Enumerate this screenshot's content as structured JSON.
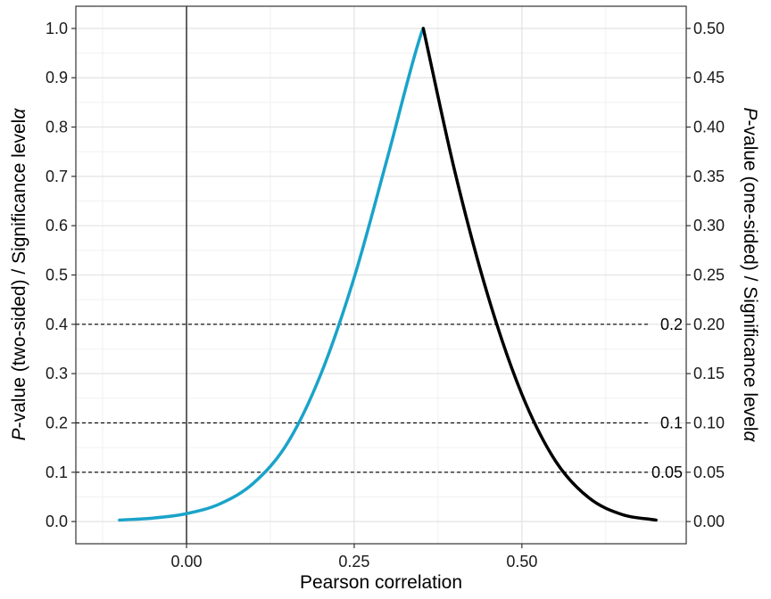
{
  "chart_data": {
    "type": "line",
    "xlabel": "Pearson correlation",
    "ylabel_left_italic": "P",
    "ylabel_left_rest": "-value (two-sided) / Significance level",
    "ylabel_left_symbol": "α",
    "ylabel_right_italic": "P",
    "ylabel_right_rest": "-value (one-sided) / Significance level",
    "ylabel_right_symbol": "α",
    "xlim": [
      -0.165,
      0.745
    ],
    "ylim": [
      -0.045,
      1.045
    ],
    "x_ticks": [
      0.0,
      0.25,
      0.5
    ],
    "x_tick_labels": [
      "0.00",
      "0.25",
      "0.50"
    ],
    "y_left_ticks": [
      0.0,
      0.1,
      0.2,
      0.3,
      0.4,
      0.5,
      0.6,
      0.7,
      0.8,
      0.9,
      1.0
    ],
    "y_left_tick_labels": [
      "0.0",
      "0.1",
      "0.2",
      "0.3",
      "0.4",
      "0.5",
      "0.6",
      "0.7",
      "0.8",
      "0.9",
      "1.0"
    ],
    "y_right_ticks": [
      0.0,
      0.05,
      0.1,
      0.15,
      0.2,
      0.25,
      0.3,
      0.35,
      0.4,
      0.45,
      0.5
    ],
    "y_right_tick_labels": [
      "0.00",
      "0.05",
      "0.10",
      "0.15",
      "0.20",
      "0.25",
      "0.30",
      "0.35",
      "0.40",
      "0.45",
      "0.50"
    ],
    "grid": true,
    "vertical_line_x": 0.0,
    "reference_lines": [
      {
        "y": 0.4,
        "label": "0.2"
      },
      {
        "y": 0.2,
        "label": "0.1"
      },
      {
        "y": 0.1,
        "label": "0.05"
      }
    ],
    "series": [
      {
        "color": "#1aa3c9",
        "x": [
          -0.1,
          -0.05,
          0.0,
          0.05,
          0.1,
          0.15,
          0.2,
          0.25,
          0.3,
          0.35,
          0.353
        ],
        "values": [
          0.003,
          0.007,
          0.016,
          0.036,
          0.078,
          0.158,
          0.298,
          0.495,
          0.74,
          0.99,
          1.0
        ]
      },
      {
        "color": "#000000",
        "x": [
          0.353,
          0.4,
          0.45,
          0.5,
          0.55,
          0.6,
          0.65,
          0.7
        ],
        "values": [
          1.0,
          0.71,
          0.455,
          0.258,
          0.123,
          0.048,
          0.014,
          0.003
        ]
      }
    ]
  }
}
